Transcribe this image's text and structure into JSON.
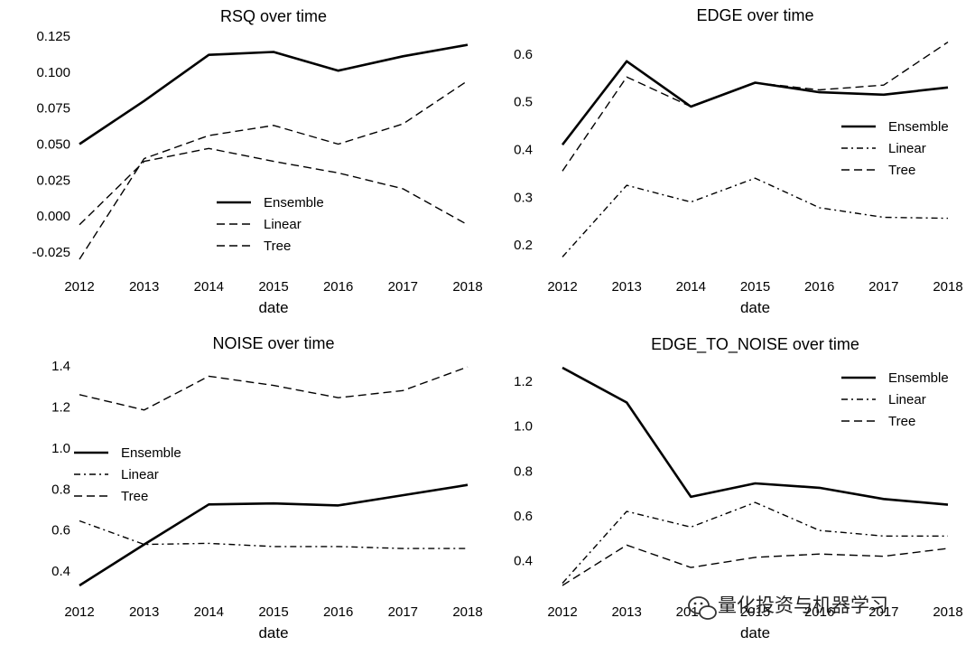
{
  "chart_data": [
    {
      "type": "line",
      "title": "RSQ over time",
      "xlabel": "date",
      "ylabel": "",
      "x": [
        "2012",
        "2013",
        "2014",
        "2015",
        "2016",
        "2017",
        "2018"
      ],
      "ylim": [
        -0.03,
        0.125
      ],
      "yticks": [
        "0.125",
        "0.100",
        "0.075",
        "0.050",
        "0.025",
        "0.000",
        "-0.025"
      ],
      "ytick_values": [
        0.125,
        0.1,
        0.075,
        0.05,
        0.025,
        0.0,
        -0.025
      ],
      "legend": "center",
      "series": [
        {
          "name": "Ensemble",
          "style": "solid",
          "values": [
            0.05,
            0.08,
            0.112,
            0.114,
            0.101,
            0.111,
            0.119
          ]
        },
        {
          "name": "Linear",
          "style": "dashed",
          "values": [
            -0.006,
            0.038,
            0.047,
            0.038,
            0.03,
            0.019,
            -0.006
          ]
        },
        {
          "name": "Tree",
          "style": "dashed",
          "values": [
            -0.03,
            0.04,
            0.056,
            0.063,
            0.05,
            0.064,
            0.094
          ]
        }
      ]
    },
    {
      "type": "line",
      "title": "EDGE over time",
      "xlabel": "date",
      "ylabel": "",
      "x": [
        "2012",
        "2013",
        "2014",
        "2015",
        "2016",
        "2017",
        "2018"
      ],
      "ylim": [
        0.17,
        0.63
      ],
      "yticks": [
        "0.6",
        "0.5",
        "0.4",
        "0.3",
        "0.2"
      ],
      "ytick_values": [
        0.6,
        0.5,
        0.4,
        0.3,
        0.2
      ],
      "legend": "center-right",
      "series": [
        {
          "name": "Ensemble",
          "style": "solid",
          "values": [
            0.41,
            0.585,
            0.49,
            0.54,
            0.52,
            0.515,
            0.53
          ]
        },
        {
          "name": "Linear",
          "style": "dashdot",
          "values": [
            0.175,
            0.325,
            0.29,
            0.34,
            0.278,
            0.258,
            0.256
          ]
        },
        {
          "name": "Tree",
          "style": "dashed",
          "values": [
            0.355,
            0.552,
            0.49,
            0.54,
            0.525,
            0.535,
            0.625
          ]
        }
      ]
    },
    {
      "type": "line",
      "title": "NOISE over time",
      "xlabel": "date",
      "ylabel": "",
      "x": [
        "2012",
        "2013",
        "2014",
        "2015",
        "2016",
        "2017",
        "2018"
      ],
      "ylim": [
        0.33,
        1.4
      ],
      "yticks": [
        "1.4",
        "1.2",
        "1.0",
        "0.8",
        "0.6",
        "0.4"
      ],
      "ytick_values": [
        1.4,
        1.2,
        1.0,
        0.8,
        0.6,
        0.4
      ],
      "legend": "center-left",
      "series": [
        {
          "name": "Ensemble",
          "style": "solid",
          "values": [
            0.33,
            0.53,
            0.725,
            0.73,
            0.72,
            0.77,
            0.82
          ]
        },
        {
          "name": "Linear",
          "style": "dashdot",
          "values": [
            0.645,
            0.53,
            0.535,
            0.52,
            0.52,
            0.51,
            0.51
          ]
        },
        {
          "name": "Tree",
          "style": "dashed",
          "values": [
            1.26,
            1.185,
            1.35,
            1.305,
            1.245,
            1.28,
            1.395
          ]
        }
      ]
    },
    {
      "type": "line",
      "title": "EDGE_TO_NOISE over time",
      "xlabel": "date",
      "ylabel": "",
      "x": [
        "2012",
        "2013",
        "2014",
        "2015",
        "2016",
        "2017",
        "2018"
      ],
      "ylim": [
        0.29,
        1.26
      ],
      "yticks": [
        "1.2",
        "1.0",
        "0.8",
        "0.6",
        "0.4"
      ],
      "ytick_values": [
        1.2,
        1.0,
        0.8,
        0.6,
        0.4
      ],
      "legend": "top-right",
      "series": [
        {
          "name": "Ensemble",
          "style": "solid",
          "values": [
            1.26,
            1.105,
            0.685,
            0.745,
            0.725,
            0.675,
            0.65
          ]
        },
        {
          "name": "Linear",
          "style": "dashdot",
          "values": [
            0.3,
            0.62,
            0.55,
            0.66,
            0.535,
            0.51,
            0.51
          ]
        },
        {
          "name": "Tree",
          "style": "dashed",
          "values": [
            0.29,
            0.47,
            0.37,
            0.415,
            0.43,
            0.42,
            0.455
          ]
        }
      ]
    }
  ],
  "watermark": {
    "text": "量化投资与机器学习",
    "icon": "wechat-icon"
  }
}
